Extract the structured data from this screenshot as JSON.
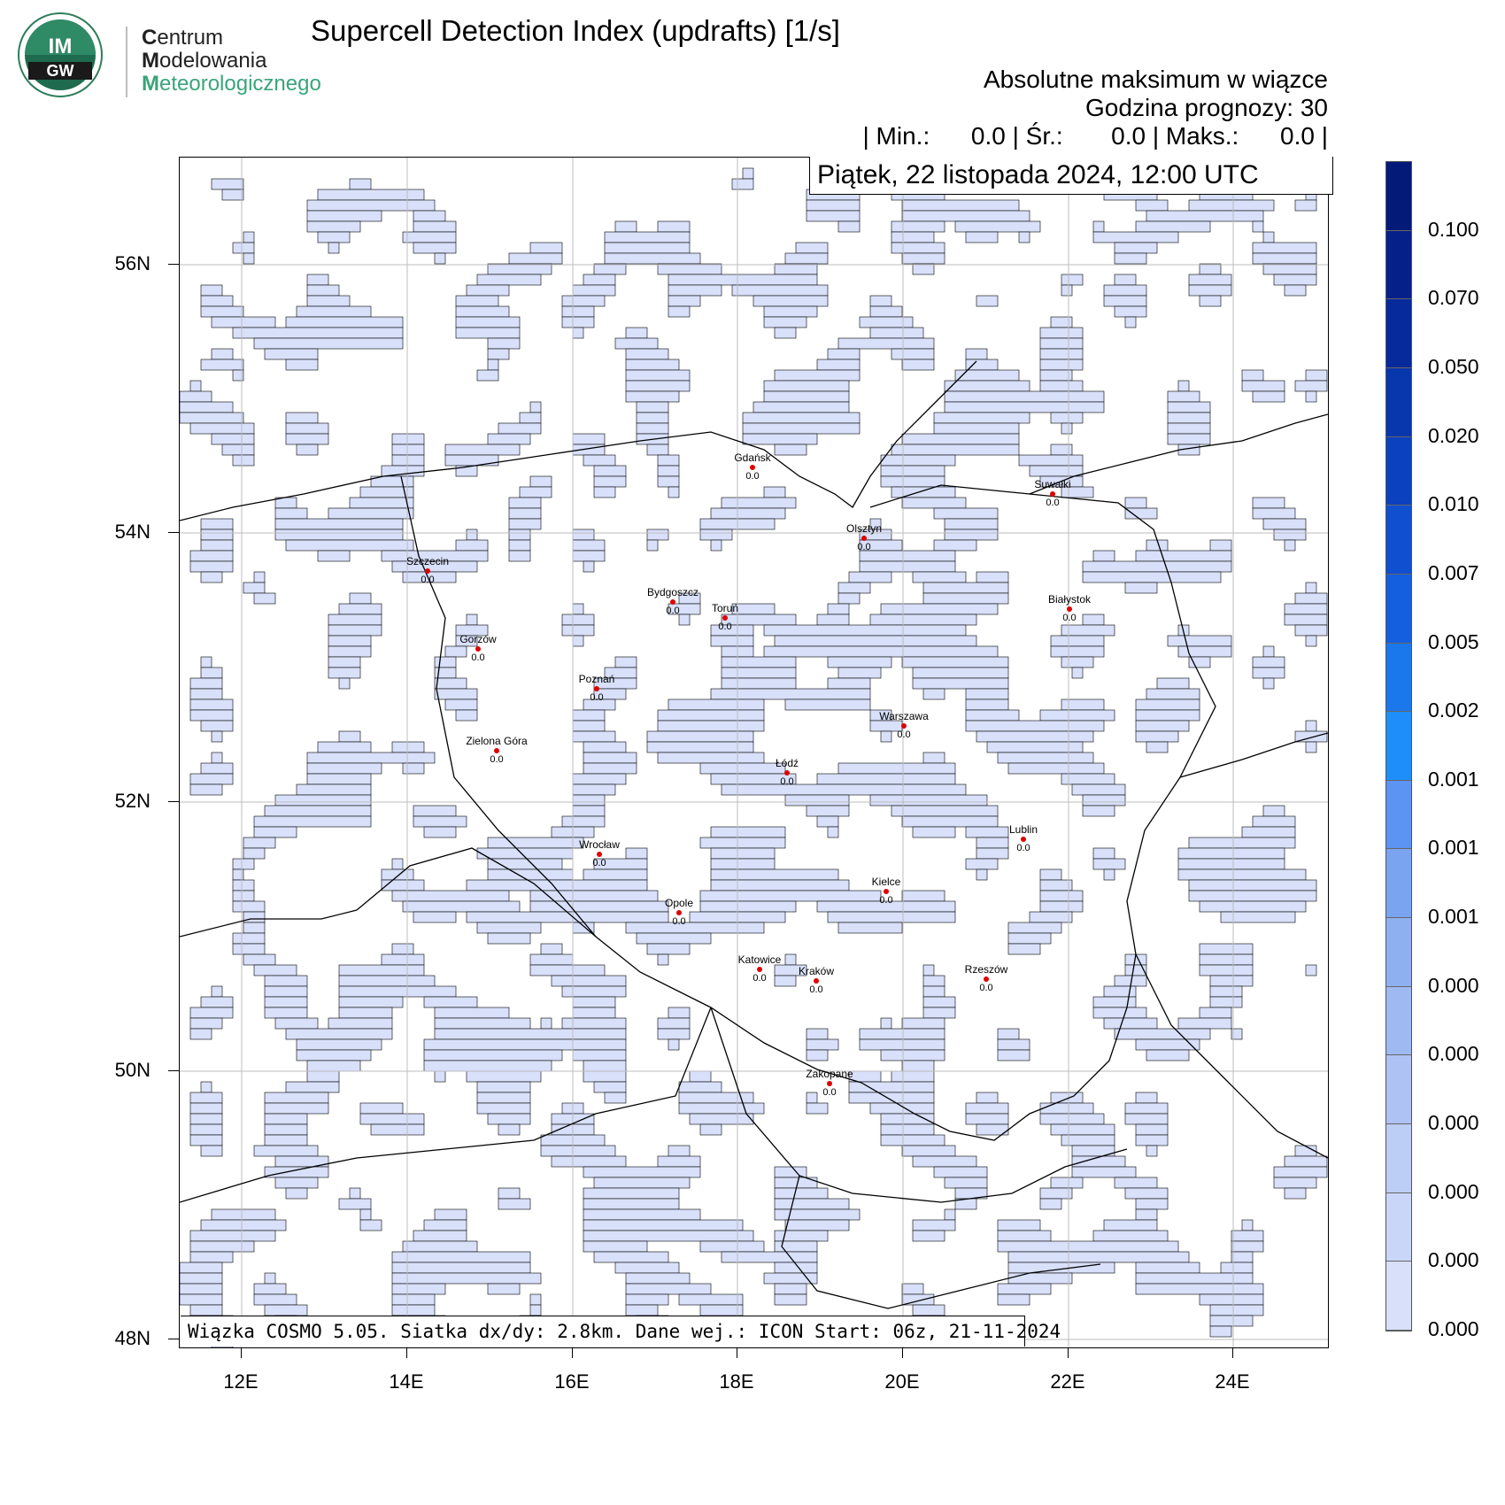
{
  "logo": {
    "emblem_text": "IMGW",
    "line1_bold": "C",
    "line1_rest": "entrum",
    "line2_bold": "M",
    "line2_rest": "odelowania",
    "line3_bold": "M",
    "line3_rest": "eteorologicznego"
  },
  "title": "Supercell Detection Index (updrafts) [1/s]",
  "subtitle1": "Absolutne maksimum w wiązce",
  "subtitle2": "Godzina prognozy: 30",
  "stats": "| Min.:      0.0 | Śr.:       0.0 | Maks.:      0.0 |",
  "date_label": "Piątek, 22 listopada 2024, 12:00 UTC",
  "footer": "Wiązka COSMO 5.05. Siatka dx/dy: 2.8km. Dane wej.: ICON Start: 06z, 21-11-2024",
  "axes": {
    "lat_labels": [
      "56N",
      "54N",
      "52N",
      "50N",
      "48N"
    ],
    "lon_labels": [
      "12E",
      "14E",
      "16E",
      "18E",
      "20E",
      "22E",
      "24E"
    ]
  },
  "colors": {
    "fill_light": "#d8e0fa",
    "colorbar": [
      "#d8e0fa",
      "#cad6f8",
      "#bccdf6",
      "#aec3f4",
      "#9fb9f2",
      "#8fb0f0",
      "#7aa4f0",
      "#5b94f2",
      "#1e8ffa",
      "#1a78ec",
      "#145fe0",
      "#0f4fd0",
      "#0b40bf",
      "#0836ad",
      "#062a9b",
      "#052088",
      "#041a78"
    ]
  },
  "colorbar_labels": [
    "0.100",
    "0.070",
    "0.050",
    "0.020",
    "0.010",
    "0.007",
    "0.005",
    "0.002",
    "0.001",
    "0.001",
    "0.001",
    "0.000",
    "0.000",
    "0.000",
    "0.000",
    "0.000",
    "0.000"
  ],
  "cities": [
    {
      "name": "Gdańsk",
      "value": "0.0"
    },
    {
      "name": "Suwałki",
      "value": "0.0"
    },
    {
      "name": "Olsztyn",
      "value": "0.0"
    },
    {
      "name": "Szczecin",
      "value": "0.0"
    },
    {
      "name": "Bydgoszcz",
      "value": "0.0"
    },
    {
      "name": "Toruń",
      "value": "0.0"
    },
    {
      "name": "Białystok",
      "value": "0.0"
    },
    {
      "name": "Gorzów",
      "value": "0.0"
    },
    {
      "name": "Poznań",
      "value": "0.0"
    },
    {
      "name": "Warszawa",
      "value": "0.0"
    },
    {
      "name": "Zielona Góra",
      "value": "0.0"
    },
    {
      "name": "Łódź",
      "value": "0.0"
    },
    {
      "name": "Lublin",
      "value": "0.0"
    },
    {
      "name": "Wrocław",
      "value": "0.0"
    },
    {
      "name": "Kielce",
      "value": "0.0"
    },
    {
      "name": "Opole",
      "value": "0.0"
    },
    {
      "name": "Katowice",
      "value": "0.0"
    },
    {
      "name": "Kraków",
      "value": "0.0"
    },
    {
      "name": "Rzeszów",
      "value": "0.0"
    },
    {
      "name": "Zakopane",
      "value": "0.0"
    }
  ]
}
